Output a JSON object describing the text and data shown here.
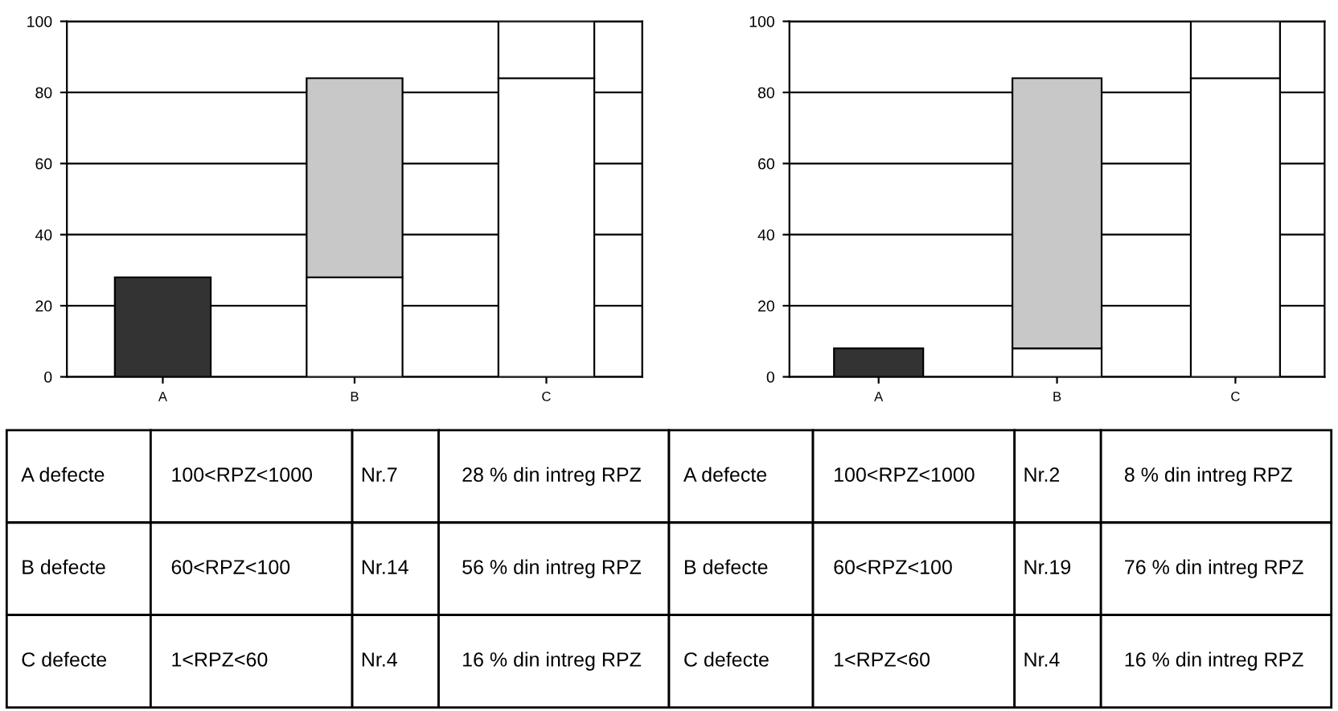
{
  "chart_data": [
    {
      "type": "bar",
      "categories": [
        "A",
        "B",
        "C"
      ],
      "stacked": true,
      "ylim": [
        0,
        100
      ],
      "yticks": [
        0,
        20,
        40,
        60,
        80,
        100
      ],
      "grid": "y",
      "series": [
        {
          "colors": [
            "#ffffff",
            "#ffffff",
            "#ffffff"
          ],
          "values": [
            null,
            28,
            84
          ]
        },
        {
          "colors": [
            "#333333",
            "#c8c8c8",
            "#ffffff"
          ],
          "values": [
            28,
            56,
            16
          ]
        }
      ]
    },
    {
      "type": "bar",
      "categories": [
        "A",
        "B",
        "C"
      ],
      "stacked": true,
      "ylim": [
        0,
        100
      ],
      "yticks": [
        0,
        20,
        40,
        60,
        80,
        100
      ],
      "grid": "y",
      "series": [
        {
          "colors": [
            "#ffffff",
            "#ffffff",
            "#ffffff"
          ],
          "values": [
            null,
            8,
            84
          ]
        },
        {
          "colors": [
            "#333333",
            "#c8c8c8",
            "#ffffff"
          ],
          "values": [
            8,
            76,
            16
          ]
        }
      ]
    },
    {
      "type": "other",
      "annotations": [
        "A defecte",
        "100<RPZ<1000",
        "Nr.7",
        "28 % din intreg RPZ",
        "A defecte",
        "100<RPZ<1000",
        "Nr.2",
        "8 % din intreg RPZ",
        "B defecte",
        "60<RPZ<100",
        "Nr.14",
        "56 % din intreg RPZ",
        "B defecte",
        "60<RPZ<100",
        "Nr.19",
        "76 % din intreg RPZ",
        "C defecte",
        "1<RPZ<60",
        "Nr.4",
        "16 % din intreg RPZ",
        "C defecte",
        "1<RPZ<60",
        "Nr.4",
        "16 % din intreg RPZ"
      ]
    }
  ]
}
